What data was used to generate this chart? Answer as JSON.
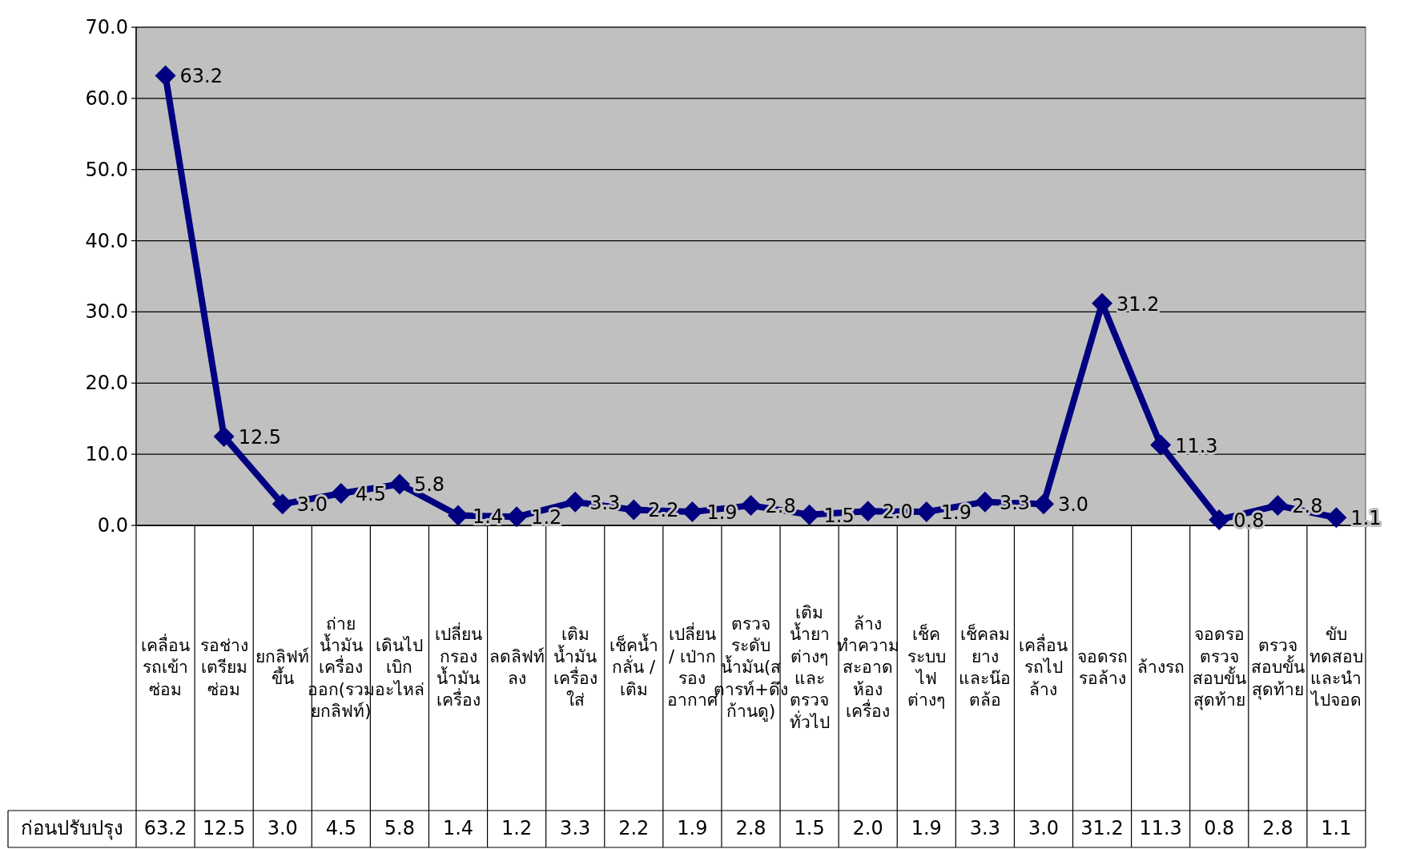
{
  "chart_data": {
    "type": "line",
    "categories": [
      "เคลื่อนรถเข้าซ่อม",
      "รอช่างเตรียมซ่อม",
      "ยกลิฟท์ขึ้น",
      "ถ่ายน้ำมันเครื่องออก(รวมยกลิฟท์)",
      "เดินไปเบิกอะไหล่",
      "เปลี่ยนกรองน้ำมันเครื่อง",
      "ลดลิฟท์ลง",
      "เติมน้ำมันเครื่องใส่",
      "เช็คน้ำกลั่น / เติม",
      "เปลี่ยน / เป่ากรองอากาศ",
      "ตรวจระดับน้ำมัน(สตารท์+ดึงก้านดู)",
      "เติมน้ำยาต่างๆและตรวจทั่วไป",
      "ล้างทำความสะอาดห้องเครื่อง",
      "เช็คระบบไฟต่างๆ",
      "เช็คลมยางและน๊อตล้อ",
      "เคลื่อนรถไปล้าง",
      "จอดรถรอล้าง",
      "ล้างรถ",
      "จอดรอตรวจสอบขั้นสุดท้าย",
      "ตรวจสอบขั้นสุดท้าย",
      "ขับทดสอบและนำไปจอด"
    ],
    "series": [
      {
        "name": "ก่อนปรับปรุง",
        "color": "#000080",
        "values": [
          63.2,
          12.5,
          3.0,
          4.5,
          5.8,
          1.4,
          1.2,
          3.3,
          2.2,
          1.9,
          2.8,
          1.5,
          2.0,
          1.9,
          3.3,
          3.0,
          31.2,
          11.3,
          0.8,
          2.8,
          1.1
        ],
        "value_labels": [
          "63.2",
          "12.5",
          "3.0",
          "4.5",
          "5.8",
          "1.4",
          "1.2",
          "3.3",
          "2.2",
          "1.9",
          "2.8",
          "1.5",
          "2.0",
          "1.9",
          "3.3",
          "3.0",
          "31.2",
          "11.3",
          "0.8",
          "2.8",
          "1.1"
        ]
      }
    ],
    "ylim": [
      0,
      70
    ],
    "yticks": [
      {
        "value": 0,
        "label": "0.0"
      },
      {
        "value": 10,
        "label": "10.0"
      },
      {
        "value": 20,
        "label": "20.0"
      },
      {
        "value": 30,
        "label": "30.0"
      },
      {
        "value": 40,
        "label": "40.0"
      },
      {
        "value": 50,
        "label": "50.0"
      },
      {
        "value": 60,
        "label": "60.0"
      },
      {
        "value": 70,
        "label": "70.0"
      }
    ],
    "grid": "y",
    "marker": "diamond",
    "line_style": "solid"
  }
}
